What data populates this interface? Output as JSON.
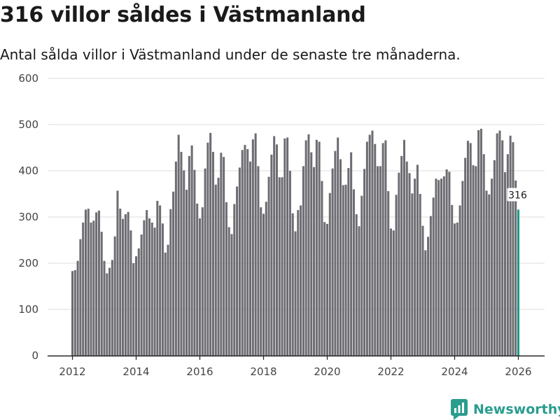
{
  "title": "316 villor såldes i Västmanland",
  "subtitle": "Antal sålda villor i Västmanland under de senaste tre månaderna.",
  "brand": "Newsworthy",
  "colors": {
    "bar": "#6d6c72",
    "highlight": "#1f9a8a",
    "grid": "#dddddd",
    "axis": "#222222",
    "brand": "#2a9d8f"
  },
  "chart_data": {
    "type": "bar",
    "start": {
      "year": 2012,
      "month": 1
    },
    "ylim": [
      0,
      600
    ],
    "yticks": [
      0,
      100,
      200,
      300,
      400,
      500,
      600
    ],
    "xticks": [
      2012,
      2014,
      2016,
      2018,
      2020,
      2022,
      2024,
      2026
    ],
    "last_label": "316",
    "values": [
      183,
      185,
      205,
      252,
      288,
      316,
      318,
      288,
      292,
      310,
      314,
      268,
      205,
      178,
      190,
      207,
      258,
      357,
      318,
      296,
      306,
      311,
      271,
      200,
      215,
      232,
      262,
      293,
      315,
      297,
      288,
      277,
      335,
      325,
      286,
      223,
      240,
      317,
      355,
      420,
      478,
      441,
      401,
      359,
      432,
      455,
      402,
      329,
      297,
      321,
      405,
      461,
      482,
      441,
      370,
      385,
      439,
      430,
      332,
      278,
      263,
      328,
      366,
      407,
      445,
      456,
      447,
      420,
      468,
      481,
      410,
      321,
      307,
      333,
      387,
      435,
      475,
      457,
      386,
      386,
      470,
      472,
      400,
      308,
      269,
      315,
      325,
      410,
      466,
      479,
      440,
      408,
      467,
      463,
      378,
      289,
      285,
      352,
      405,
      443,
      472,
      425,
      369,
      370,
      406,
      440,
      360,
      306,
      280,
      346,
      404,
      463,
      478,
      487,
      458,
      410,
      410,
      460,
      466,
      356,
      275,
      271,
      348,
      396,
      432,
      467,
      420,
      395,
      351,
      383,
      413,
      350,
      281,
      228,
      257,
      302,
      342,
      383,
      380,
      383,
      388,
      403,
      398,
      326,
      286,
      288,
      325,
      378,
      428,
      465,
      460,
      412,
      410,
      488,
      491,
      436,
      357,
      349,
      383,
      423,
      481,
      487,
      466,
      397,
      436,
      476,
      462,
      379,
      316
    ]
  }
}
